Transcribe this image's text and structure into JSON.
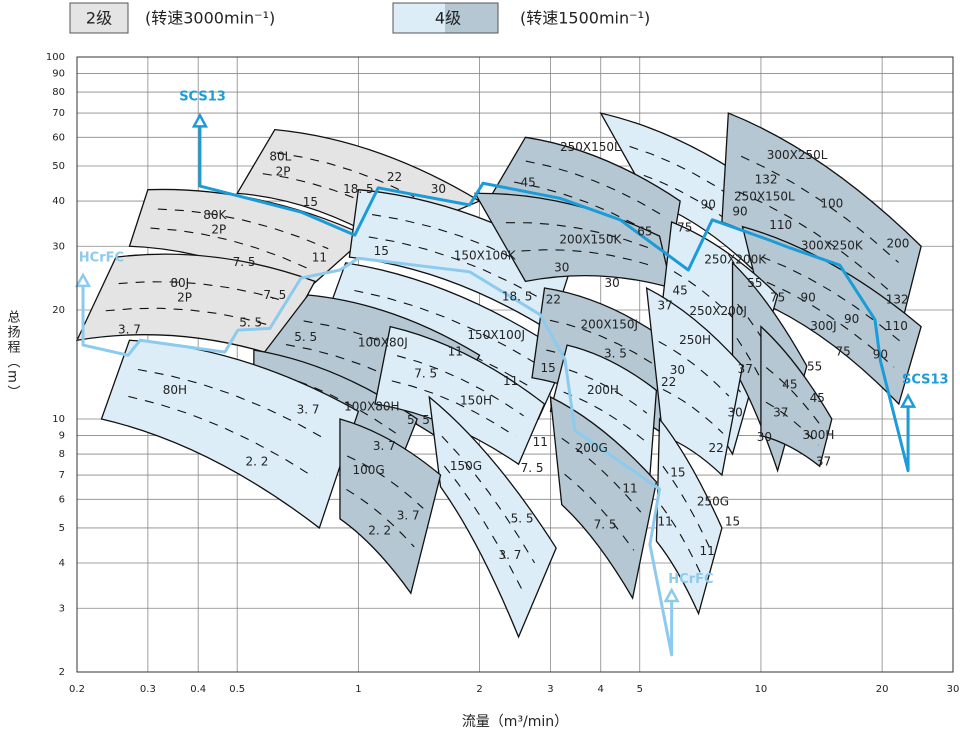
{
  "chart_data": {
    "type": "pump-range",
    "legend": [
      {
        "label": "2级",
        "note": "(转速3000min⁻¹)",
        "colors": [
          "#e4e4e4"
        ]
      },
      {
        "label": "4级",
        "note": "(转速1500min⁻¹)",
        "colors": [
          "#dcedf7",
          "#b4c7d3"
        ]
      }
    ],
    "x_label": "流量（m³/min）",
    "y_label": "总扬程（m）",
    "xscale": "log",
    "yscale": "log",
    "grid": true,
    "xlim": [
      0.2,
      30
    ],
    "ylim": [
      2,
      100
    ],
    "xticks": [
      0.2,
      0.3,
      0.4,
      0.5,
      1,
      2,
      3,
      4,
      5,
      10,
      20,
      30
    ],
    "yticks": [
      2,
      3,
      4,
      5,
      6,
      7,
      8,
      9,
      10,
      20,
      30,
      40,
      50,
      60,
      70,
      80,
      90,
      100
    ],
    "regions": [
      {
        "color": "#e4e4e4",
        "flow": [
          0.62,
          2.0,
          1.15,
          0.5
        ],
        "head": [
          63,
          40,
          31,
          42
        ]
      },
      {
        "color": "#e4e4e4",
        "flow": [
          0.3,
          1.05,
          0.72,
          0.27
        ],
        "head": [
          43,
          32,
          22,
          30
        ]
      },
      {
        "color": "#e4e4e4",
        "flow": [
          0.25,
          0.78,
          0.62,
          0.2
        ],
        "head": [
          28,
          24,
          15,
          16.5
        ]
      },
      {
        "color": "#dcedf7",
        "flow": [
          1.0,
          3.4,
          3.0,
          0.95
        ],
        "head": [
          43,
          27,
          17.5,
          28
        ]
      },
      {
        "color": "#dcedf7",
        "flow": [
          4.0,
          11,
          9.5,
          5.3
        ],
        "head": [
          70,
          40,
          26,
          40
        ]
      },
      {
        "color": "#b4c7d3",
        "flow": [
          2.6,
          6.3,
          5.9,
          2.1
        ],
        "head": [
          60,
          40,
          26,
          40
        ]
      },
      {
        "color": "#b4c7d3",
        "flow": [
          8.3,
          25,
          22,
          8
        ],
        "head": [
          70,
          30,
          17,
          35
        ]
      },
      {
        "color": "#b4c7d3",
        "flow": [
          1.95,
          5.6,
          6.0,
          2.6
        ],
        "head": [
          42,
          32,
          23,
          24
        ]
      },
      {
        "color": "#b4c7d3",
        "flow": [
          9,
          25,
          22,
          10
        ],
        "head": [
          34,
          18,
          11,
          21
        ]
      },
      {
        "color": "#dcedf7",
        "flow": [
          6,
          11,
          8.5,
          5.5
        ],
        "head": [
          35,
          22,
          8,
          15
        ]
      },
      {
        "color": "#dcedf7",
        "flow": [
          0.93,
          3.3,
          2.8,
          0.8
        ],
        "head": [
          27,
          15,
          10,
          17
        ]
      },
      {
        "color": "#b4c7d3",
        "flow": [
          0.75,
          2.0,
          1.55,
          0.55
        ],
        "head": [
          22,
          15,
          9,
          14
        ]
      },
      {
        "color": "#b4c7d3",
        "flow": [
          0.55,
          1.4,
          1.2,
          0.55
        ],
        "head": [
          15.5,
          10,
          6.5,
          11
        ]
      },
      {
        "color": "#dcedf7",
        "flow": [
          0.27,
          1.0,
          0.8,
          0.23
        ],
        "head": [
          16.5,
          10.5,
          5,
          10
        ]
      },
      {
        "color": "#b4c7d3",
        "flow": [
          2.9,
          5.6,
          5.8,
          2.7
        ],
        "head": [
          23,
          17,
          9,
          13
        ]
      },
      {
        "color": "#b4c7d3",
        "flow": [
          8.5,
          13,
          11,
          8.5
        ],
        "head": [
          27,
          14,
          7.2,
          14
        ]
      },
      {
        "color": "#dcedf7",
        "flow": [
          1.2,
          2.9,
          2.5,
          1.1
        ],
        "head": [
          18,
          11,
          7.5,
          11
        ]
      },
      {
        "color": "#dcedf7",
        "flow": [
          5.2,
          9,
          8,
          5.7
        ],
        "head": [
          23,
          14,
          7,
          9
        ]
      },
      {
        "color": "#dcedf7",
        "flow": [
          3.3,
          5.5,
          5.3,
          3.0
        ],
        "head": [
          16,
          12,
          7,
          10.5
        ]
      },
      {
        "color": "#b4c7d3",
        "flow": [
          10,
          15,
          14,
          10
        ],
        "head": [
          18,
          10,
          7.4,
          9
        ]
      },
      {
        "color": "#dcedf7",
        "flow": [
          1.5,
          3.1,
          2.5,
          1.6
        ],
        "head": [
          11.5,
          4.4,
          2.5,
          6.5
        ]
      },
      {
        "color": "#b4c7d3",
        "flow": [
          0.9,
          1.6,
          1.35,
          0.9
        ],
        "head": [
          10,
          7,
          3.3,
          5.3
        ]
      },
      {
        "color": "#b4c7d3",
        "flow": [
          3.0,
          5.5,
          4.8,
          3.2
        ],
        "head": [
          11.5,
          6.7,
          3.2,
          5.8
        ]
      },
      {
        "color": "#dcedf7",
        "flow": [
          5.6,
          8,
          7,
          5.5
        ],
        "head": [
          10,
          5,
          2.9,
          4.6
        ]
      }
    ],
    "series": [
      {
        "name": "SCS13",
        "color": "#1b9bd7",
        "x": [
          0.404,
          0.404,
          0.72,
          0.98,
          1.12,
          1.89,
          2.04,
          3.17,
          4.47,
          6.6,
          7.57,
          10.5,
          11.8,
          15.7,
          19.2,
          19.8,
          23.2,
          23.2
        ],
        "y": [
          69,
          44,
          37.3,
          32.2,
          43.5,
          39,
          44.8,
          40.7,
          35.5,
          25.8,
          35.5,
          31.2,
          29.7,
          26.6,
          18.8,
          14.5,
          7.2,
          11.6
        ],
        "label_x": [
          0.41,
          25.6
        ],
        "label_y": [
          77.5,
          12.8
        ]
      },
      {
        "name": "HCrFC",
        "color": "#8ccbee",
        "x": [
          0.207,
          0.207,
          0.268,
          0.287,
          0.466,
          0.502,
          0.603,
          0.72,
          0.9,
          1.0,
          1.89,
          2.83,
          3.26,
          3.45,
          5.6,
          5.3,
          6.0,
          6.0
        ],
        "y": [
          25,
          16,
          15,
          16.5,
          15.3,
          17.6,
          17.8,
          24.5,
          25.8,
          27.8,
          25.5,
          19.4,
          14.6,
          9.3,
          6.4,
          4.5,
          2.23,
          3.37
        ],
        "label_x": [
          0.23,
          6.7
        ],
        "label_y": [
          27.8,
          3.6
        ]
      }
    ],
    "annotations": [
      {
        "text": "80L",
        "x": 0.64,
        "y": 52.9
      },
      {
        "text": "2P",
        "x": 0.65,
        "y": 48.1
      },
      {
        "text": "18. 5",
        "x": 1.0,
        "y": 43.0
      },
      {
        "text": "22",
        "x": 1.23,
        "y": 46.4
      },
      {
        "text": "30",
        "x": 1.58,
        "y": 43.0
      },
      {
        "text": "15",
        "x": 0.76,
        "y": 39.6
      },
      {
        "text": "80K",
        "x": 0.44,
        "y": 36.5
      },
      {
        "text": "2P",
        "x": 0.45,
        "y": 33.3
      },
      {
        "text": "7. 5",
        "x": 0.52,
        "y": 27.1
      },
      {
        "text": "11",
        "x": 0.8,
        "y": 27.8
      },
      {
        "text": "80J",
        "x": 0.36,
        "y": 23.7
      },
      {
        "text": "2P",
        "x": 0.37,
        "y": 21.6
      },
      {
        "text": "7. 5",
        "x": 0.62,
        "y": 21.9
      },
      {
        "text": "3. 7",
        "x": 0.27,
        "y": 17.6
      },
      {
        "text": "5. 5",
        "x": 0.54,
        "y": 18.4
      },
      {
        "text": "5. 5",
        "x": 0.74,
        "y": 16.8
      },
      {
        "text": "80H",
        "x": 0.35,
        "y": 12.0
      },
      {
        "text": "3. 7",
        "x": 0.75,
        "y": 10.6
      },
      {
        "text": "2. 2",
        "x": 0.56,
        "y": 7.6
      },
      {
        "text": "100X80J",
        "x": 1.15,
        "y": 16.2
      },
      {
        "text": "11",
        "x": 1.74,
        "y": 15.3
      },
      {
        "text": "7. 5",
        "x": 1.47,
        "y": 13.3
      },
      {
        "text": "100X80H",
        "x": 1.08,
        "y": 10.8
      },
      {
        "text": "5. 5",
        "x": 1.41,
        "y": 9.9
      },
      {
        "text": "3. 7",
        "x": 1.16,
        "y": 8.4
      },
      {
        "text": "100G",
        "x": 1.06,
        "y": 7.2
      },
      {
        "text": "3. 7",
        "x": 1.33,
        "y": 5.4
      },
      {
        "text": "2. 2",
        "x": 1.13,
        "y": 4.9
      },
      {
        "text": "150X100K",
        "x": 2.06,
        "y": 28.2
      },
      {
        "text": "30",
        "x": 3.2,
        "y": 26.1
      },
      {
        "text": "18. 5",
        "x": 2.48,
        "y": 21.7
      },
      {
        "text": "22",
        "x": 3.05,
        "y": 21.3
      },
      {
        "text": "15",
        "x": 1.14,
        "y": 29.0
      },
      {
        "text": "150X100J",
        "x": 2.2,
        "y": 17.0
      },
      {
        "text": "15",
        "x": 2.96,
        "y": 13.8
      },
      {
        "text": "11",
        "x": 2.39,
        "y": 12.7
      },
      {
        "text": "150H",
        "x": 1.96,
        "y": 11.2
      },
      {
        "text": "11",
        "x": 2.83,
        "y": 8.6
      },
      {
        "text": "7. 5",
        "x": 2.7,
        "y": 7.3
      },
      {
        "text": "150G",
        "x": 1.85,
        "y": 7.4
      },
      {
        "text": "5. 5",
        "x": 2.55,
        "y": 5.3
      },
      {
        "text": "3. 7",
        "x": 2.38,
        "y": 4.2
      },
      {
        "text": "250X150L",
        "x": 3.77,
        "y": 56.2
      },
      {
        "text": "45",
        "x": 2.64,
        "y": 44.8
      },
      {
        "text": "200X150K",
        "x": 3.77,
        "y": 31.2
      },
      {
        "text": "65",
        "x": 5.15,
        "y": 32.8
      },
      {
        "text": "75",
        "x": 6.47,
        "y": 33.7
      },
      {
        "text": "30",
        "x": 4.27,
        "y": 23.7
      },
      {
        "text": "37",
        "x": 5.78,
        "y": 20.5
      },
      {
        "text": "45",
        "x": 6.3,
        "y": 22.6
      },
      {
        "text": "200X150J",
        "x": 4.2,
        "y": 18.2
      },
      {
        "text": "3. 5",
        "x": 4.35,
        "y": 15.1
      },
      {
        "text": "22",
        "x": 5.9,
        "y": 12.6
      },
      {
        "text": "30",
        "x": 6.2,
        "y": 13.6
      },
      {
        "text": "200H",
        "x": 4.05,
        "y": 12.0
      },
      {
        "text": "11",
        "x": 4.73,
        "y": 6.4
      },
      {
        "text": "200G",
        "x": 3.8,
        "y": 8.3
      },
      {
        "text": "7. 5",
        "x": 4.1,
        "y": 5.1
      },
      {
        "text": "11",
        "x": 5.78,
        "y": 5.2
      },
      {
        "text": "15",
        "x": 6.22,
        "y": 7.1
      },
      {
        "text": "250G",
        "x": 7.6,
        "y": 5.9
      },
      {
        "text": "15",
        "x": 8.5,
        "y": 5.2
      },
      {
        "text": "11",
        "x": 7.35,
        "y": 4.3
      },
      {
        "text": "22",
        "x": 7.74,
        "y": 8.3
      },
      {
        "text": "30",
        "x": 8.63,
        "y": 10.4
      },
      {
        "text": "37",
        "x": 9.14,
        "y": 13.7
      },
      {
        "text": "250H",
        "x": 6.86,
        "y": 16.5
      },
      {
        "text": "250X200J",
        "x": 7.83,
        "y": 19.8
      },
      {
        "text": "250X200K",
        "x": 8.63,
        "y": 27.5
      },
      {
        "text": "55",
        "x": 9.66,
        "y": 23.7
      },
      {
        "text": "75",
        "x": 11.0,
        "y": 21.6
      },
      {
        "text": "90",
        "x": 13.1,
        "y": 21.6
      },
      {
        "text": "250X150L",
        "x": 10.2,
        "y": 41.1
      },
      {
        "text": "132",
        "x": 10.3,
        "y": 45.7
      },
      {
        "text": "90",
        "x": 7.4,
        "y": 39.0
      },
      {
        "text": "90",
        "x": 8.87,
        "y": 37.3
      },
      {
        "text": "110",
        "x": 11.2,
        "y": 34.2
      },
      {
        "text": "300X250L",
        "x": 12.3,
        "y": 53.4
      },
      {
        "text": "100",
        "x": 15.0,
        "y": 39.2
      },
      {
        "text": "300X250K",
        "x": 15.0,
        "y": 30.1
      },
      {
        "text": "200",
        "x": 21.9,
        "y": 30.4
      },
      {
        "text": "132",
        "x": 21.8,
        "y": 21.3
      },
      {
        "text": "110",
        "x": 21.7,
        "y": 18.0
      },
      {
        "text": "300J",
        "x": 14.3,
        "y": 18.0
      },
      {
        "text": "90",
        "x": 16.8,
        "y": 18.8
      },
      {
        "text": "75",
        "x": 16.0,
        "y": 15.3
      },
      {
        "text": "90",
        "x": 19.8,
        "y": 15.0
      },
      {
        "text": "55",
        "x": 13.6,
        "y": 13.9
      },
      {
        "text": "45",
        "x": 11.8,
        "y": 12.4
      },
      {
        "text": "45",
        "x": 13.8,
        "y": 11.4
      },
      {
        "text": "37",
        "x": 11.2,
        "y": 10.4
      },
      {
        "text": "30",
        "x": 10.2,
        "y": 8.9
      },
      {
        "text": "300H",
        "x": 13.9,
        "y": 9.0
      },
      {
        "text": "37",
        "x": 14.3,
        "y": 7.6
      }
    ]
  }
}
